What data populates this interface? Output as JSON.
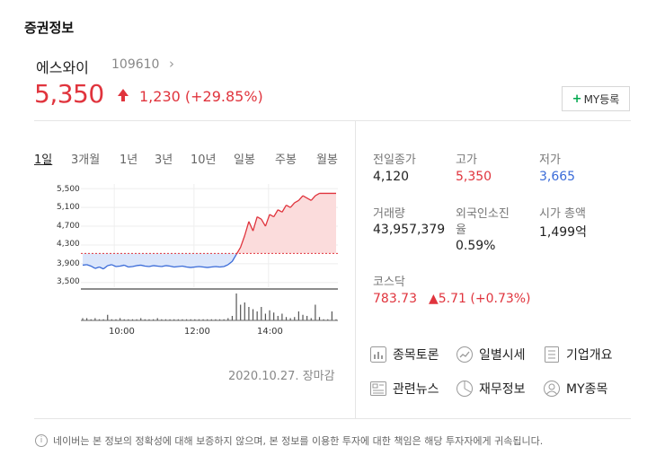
{
  "section_title": "증권정보",
  "stock": {
    "name": "에스와이",
    "code": "109610",
    "price": "5,350",
    "change": "1,230 (+29.85%)"
  },
  "my_button": {
    "plus": "+",
    "label": "MY등록"
  },
  "tabs": [
    "1일",
    "3개월",
    "1년",
    "3년",
    "10년",
    "일봉",
    "주봉",
    "월봉"
  ],
  "active_tab": "1일",
  "chart": {
    "y_ticks": [
      "5,500",
      "5,100",
      "4,700",
      "4,300",
      "3,900",
      "3,500"
    ],
    "x_ticks": [
      "10:00",
      "12:00",
      "14:00"
    ]
  },
  "chart_data": {
    "type": "line",
    "x_ticks": [
      "10:00",
      "12:00",
      "14:00"
    ],
    "y_ticks": [
      5500,
      5100,
      4700,
      4300,
      3900,
      3500
    ],
    "ylim": [
      3400,
      5600
    ],
    "reference_line": 4120,
    "series": [
      {
        "values": [
          3870,
          3880,
          3850,
          3800,
          3830,
          3790,
          3860,
          3880,
          3840,
          3850,
          3870,
          3830,
          3840,
          3860,
          3870,
          3850,
          3840,
          3860,
          3850,
          3840,
          3860,
          3850,
          3830,
          3840,
          3850,
          3830,
          3820,
          3830,
          3840,
          3830,
          3820,
          3830,
          3840,
          3830,
          3840,
          3880,
          3950,
          4100,
          4250,
          4500,
          4800,
          4600,
          4900,
          4850,
          4700,
          4950,
          4900,
          5050,
          5000,
          5150,
          5100,
          5200,
          5250,
          5350,
          5300,
          5250,
          5350,
          5400,
          5400,
          5400,
          5400,
          5400
        ]
      }
    ],
    "volume": [
      2,
      2,
      1,
      2,
      1,
      1,
      5,
      1,
      1,
      2,
      1,
      1,
      1,
      1,
      2,
      1,
      1,
      1,
      2,
      1,
      1,
      1,
      1,
      1,
      1,
      1,
      1,
      1,
      1,
      1,
      1,
      1,
      1,
      1,
      1,
      2,
      4,
      24,
      14,
      16,
      12,
      10,
      8,
      12,
      6,
      9,
      7,
      4,
      6,
      3,
      2,
      3,
      8,
      5,
      4,
      2,
      14,
      3,
      1,
      1,
      8,
      1
    ]
  },
  "chart_date": "2020.10.27. 장마감",
  "info": {
    "prev_close_label": "전일종가",
    "prev_close": "4,120",
    "high_label": "고가",
    "high": "5,350",
    "low_label": "저가",
    "low": "3,665",
    "volume_label": "거래량",
    "volume": "43,957,379",
    "foreign_label_1": "외국인소진",
    "foreign_label_2": "율",
    "foreign": "0.59%",
    "mktcap_label": "시가 총액",
    "mktcap": "1,499억",
    "kosdaq_label": "코스닥",
    "kosdaq": "783.73",
    "kosdaq_change": "▲5.71 (+0.73%)"
  },
  "links": [
    "종목토론",
    "일별시세",
    "기업개요",
    "관련뉴스",
    "재무정보",
    "MY종목"
  ],
  "disclaimer": "네이버는 본 정보의 정확성에 대해 보증하지 않으며, 본 정보를 이용한 투자에 대한 책임은 해당 투자자에게 귀속됩니다.",
  "colors": {
    "up": "#e0343d",
    "down": "#3a6bd8",
    "brand_green": "#03a94f"
  }
}
